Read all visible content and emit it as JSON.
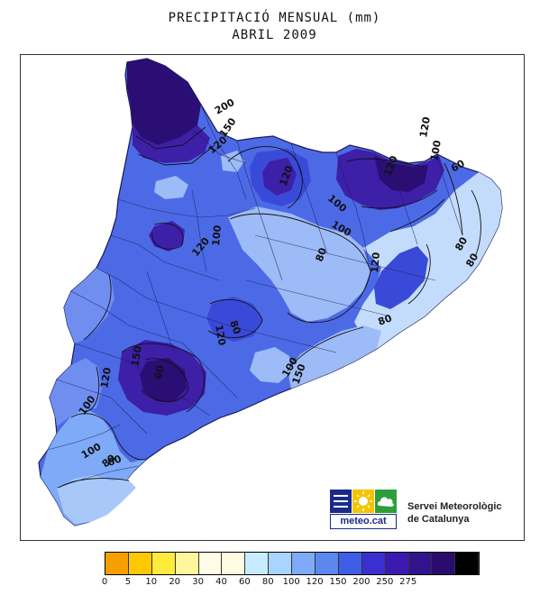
{
  "title": {
    "line1": "PRECIPITACIÓ MENSUAL (mm)",
    "line2": "ABRIL 2009"
  },
  "map": {
    "isohyet_labels": [
      "200",
      "150",
      "120",
      "120",
      "100",
      "120",
      "100",
      "120",
      "120",
      "60",
      "100",
      "120",
      "150",
      "100",
      "120",
      "100",
      "80",
      "100",
      "150",
      "100",
      "80",
      "80",
      "120",
      "80",
      "80",
      "80",
      "80",
      "60"
    ],
    "colors": {
      "background_frame": "#ffffff",
      "very_high": "#2a0e73",
      "high": "#3d1fa8",
      "mid_high": "#3a4ad8",
      "mid": "#4d6ae6",
      "mid_low": "#6f8ef0",
      "low": "#9dbbf6",
      "lowest": "#c4dcfb"
    }
  },
  "logo": {
    "text": "meteo.cat",
    "squares": [
      "#1a2a8a",
      "#f4c400",
      "#2e9e3a"
    ],
    "icons": [
      "menu-lines-icon",
      "sun-icon",
      "cloud-icon"
    ]
  },
  "institution": {
    "line1": "Servei Meteorològic",
    "line2": "de Catalunya"
  },
  "legend": {
    "colors": [
      "#f5a000",
      "#ffc800",
      "#ffeb3b",
      "#fff59d",
      "#fffde7",
      "#fffbe0",
      "#c8ecff",
      "#a8d4ff",
      "#7eaaf7",
      "#5b87ef",
      "#3f5ee6",
      "#3a2fd0",
      "#3a1ab0",
      "#33128e",
      "#2a0c6e",
      "#000000"
    ],
    "labels": [
      "0",
      "5",
      "10",
      "20",
      "30",
      "40",
      "60",
      "80",
      "100",
      "120",
      "150",
      "200",
      "250",
      "275"
    ]
  }
}
